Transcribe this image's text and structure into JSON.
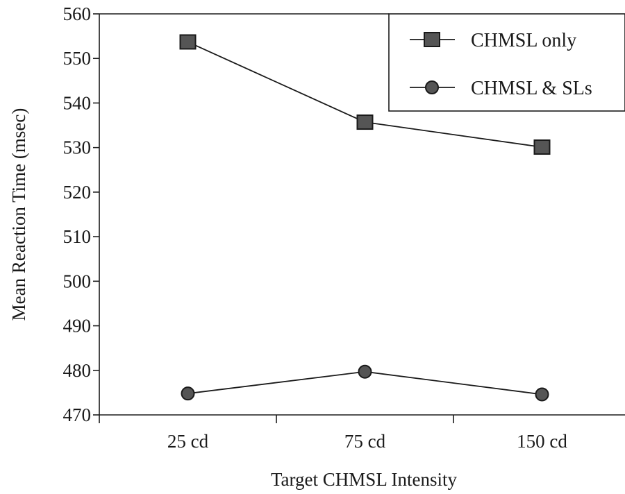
{
  "chart_data": {
    "type": "line",
    "title": "",
    "xlabel": "Target CHMSL Intensity",
    "ylabel": "Mean Reaction Time (msec)",
    "categories": [
      "25 cd",
      "75 cd",
      "150 cd"
    ],
    "ylim": [
      470,
      560
    ],
    "yticks": [
      "470",
      "480",
      "490",
      "500",
      "510",
      "520",
      "530",
      "540",
      "550",
      "560"
    ],
    "grid": false,
    "legend_position": "top-right",
    "series": [
      {
        "name": "CHMSL only",
        "marker": "square",
        "values": [
          553.7,
          535.7,
          530.1
        ]
      },
      {
        "name": "CHMSL & SLs",
        "marker": "circle",
        "values": [
          474.8,
          479.7,
          474.6
        ]
      }
    ],
    "colors": {
      "line": "#1a1a1a",
      "marker_fill": "#555555"
    }
  }
}
